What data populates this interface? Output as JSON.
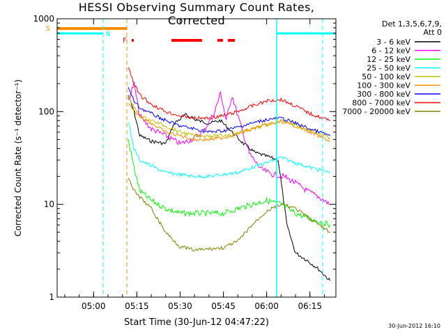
{
  "title": "HESSI Observing Summary Count Rates, Corrected",
  "timestamp": "30-Jun-2012 16:10",
  "detector": {
    "line1": "Det 1,3,5,6,7,9,",
    "line2": "Att 0"
  },
  "flags": {
    "s": "S",
    "n": "N",
    "f": "F"
  },
  "colors": {
    "axis": "#000000",
    "s_bar": "#ff8c00",
    "n_bar": "#00ffff",
    "flare_bar": "#ff0000",
    "vline_cyan": "#00ffff",
    "vline_orange": "#ff8c00"
  },
  "chart_data": {
    "type": "line",
    "title": "HESSI Observing Summary Count Rates, Corrected",
    "xlabel": "Start Time (30-Jun-12 04:47:22)",
    "ylabel": "Corrected Count Rate (s⁻¹ detector⁻¹)",
    "xlim": [
      "04:47:22",
      "06:24:00"
    ],
    "ylim": [
      1,
      1000
    ],
    "yscale": "log",
    "x_ticks": [
      "05:00",
      "05:15",
      "05:30",
      "05:45",
      "06:00",
      "06:15"
    ],
    "y_ticks": [
      "1",
      "10",
      "100",
      "1000"
    ],
    "legend_position": "top-right",
    "series": [
      {
        "name": "3 - 6 keV",
        "color": "#000000",
        "x": [
          "05:12",
          "05:14",
          "05:16",
          "05:20",
          "05:25",
          "05:28",
          "05:32",
          "05:36",
          "05:40",
          "05:44",
          "05:48",
          "05:52",
          "05:56",
          "06:00",
          "06:04",
          "06:07",
          "06:10",
          "06:14",
          "06:18",
          "06:22"
        ],
        "values": [
          150,
          100,
          55,
          48,
          45,
          75,
          92,
          80,
          75,
          80,
          60,
          45,
          36,
          33,
          30,
          6,
          3,
          2.5,
          2,
          1.5
        ]
      },
      {
        "name": "6 - 12 keV",
        "color": "#ff00ff",
        "x": [
          "05:12",
          "05:14",
          "05:16",
          "05:20",
          "05:25",
          "05:30",
          "05:34",
          "05:38",
          "05:42",
          "05:44",
          "05:46",
          "05:48",
          "05:50",
          "05:54",
          "05:58",
          "06:02",
          "06:06",
          "06:10",
          "06:14",
          "06:18",
          "06:22"
        ],
        "values": [
          130,
          200,
          90,
          65,
          55,
          45,
          50,
          60,
          100,
          160,
          80,
          150,
          90,
          35,
          24,
          21,
          20,
          17,
          14,
          12,
          10
        ]
      },
      {
        "name": "12 - 25 keV",
        "color": "#00ff00",
        "x": [
          "05:12",
          "05:14",
          "05:16",
          "05:20",
          "05:25",
          "05:30",
          "05:35",
          "05:40",
          "05:45",
          "05:50",
          "05:55",
          "06:00",
          "06:05",
          "06:10",
          "06:15",
          "06:22"
        ],
        "values": [
          50,
          25,
          14,
          11,
          9,
          8,
          8,
          8,
          8,
          9,
          10,
          11,
          10,
          8,
          7,
          6
        ]
      },
      {
        "name": "25 - 50 keV",
        "color": "#00ffff",
        "x": [
          "05:12",
          "05:14",
          "05:16",
          "05:20",
          "05:25",
          "05:30",
          "05:35",
          "05:40",
          "05:45",
          "05:50",
          "05:55",
          "06:00",
          "06:05",
          "06:10",
          "06:15",
          "06:22"
        ],
        "values": [
          80,
          40,
          30,
          26,
          22,
          21,
          20,
          20,
          21,
          22,
          25,
          28,
          32,
          28,
          25,
          22
        ]
      },
      {
        "name": "50 - 100 keV",
        "color": "#c0c000",
        "x": [
          "05:12",
          "05:14",
          "05:16",
          "05:20",
          "05:25",
          "05:30",
          "05:35",
          "05:40",
          "05:45",
          "05:50",
          "05:55",
          "06:00",
          "06:05",
          "06:10",
          "06:15",
          "06:22"
        ],
        "values": [
          150,
          110,
          90,
          80,
          70,
          60,
          55,
          55,
          55,
          58,
          65,
          72,
          80,
          72,
          62,
          52
        ]
      },
      {
        "name": "100 - 300 keV",
        "color": "#ff8c00",
        "x": [
          "05:12",
          "05:14",
          "05:16",
          "05:20",
          "05:25",
          "05:30",
          "05:35",
          "05:40",
          "05:45",
          "05:50",
          "05:55",
          "06:00",
          "06:05",
          "06:10",
          "06:15",
          "06:22"
        ],
        "values": [
          120,
          100,
          90,
          75,
          60,
          55,
          50,
          50,
          52,
          58,
          65,
          72,
          78,
          70,
          60,
          48
        ]
      },
      {
        "name": "300 - 800 keV",
        "color": "#0000ff",
        "x": [
          "05:12",
          "05:14",
          "05:16",
          "05:20",
          "05:25",
          "05:30",
          "05:35",
          "05:40",
          "05:45",
          "05:50",
          "05:55",
          "06:00",
          "06:05",
          "06:10",
          "06:15",
          "06:22"
        ],
        "values": [
          180,
          130,
          110,
          95,
          80,
          70,
          65,
          60,
          62,
          68,
          75,
          82,
          85,
          75,
          65,
          55
        ]
      },
      {
        "name": "800 - 7000 keV",
        "color": "#ff0000",
        "x": [
          "05:12",
          "05:14",
          "05:16",
          "05:20",
          "05:25",
          "05:30",
          "05:35",
          "05:40",
          "05:45",
          "05:50",
          "05:55",
          "06:00",
          "06:05",
          "06:10",
          "06:15",
          "06:22"
        ],
        "values": [
          300,
          200,
          150,
          120,
          100,
          90,
          85,
          85,
          90,
          100,
          115,
          130,
          135,
          115,
          95,
          80
        ]
      },
      {
        "name": "7000 - 20000 keV",
        "color": "#808000",
        "x": [
          "05:12",
          "05:14",
          "05:16",
          "05:20",
          "05:25",
          "05:30",
          "05:35",
          "05:40",
          "05:45",
          "05:50",
          "05:55",
          "06:00",
          "06:05",
          "06:10",
          "06:15",
          "06:22"
        ],
        "values": [
          20,
          14,
          12,
          9,
          5,
          3.5,
          3.2,
          3.3,
          3.4,
          4,
          6,
          8.5,
          10,
          9,
          7,
          5
        ]
      }
    ]
  }
}
